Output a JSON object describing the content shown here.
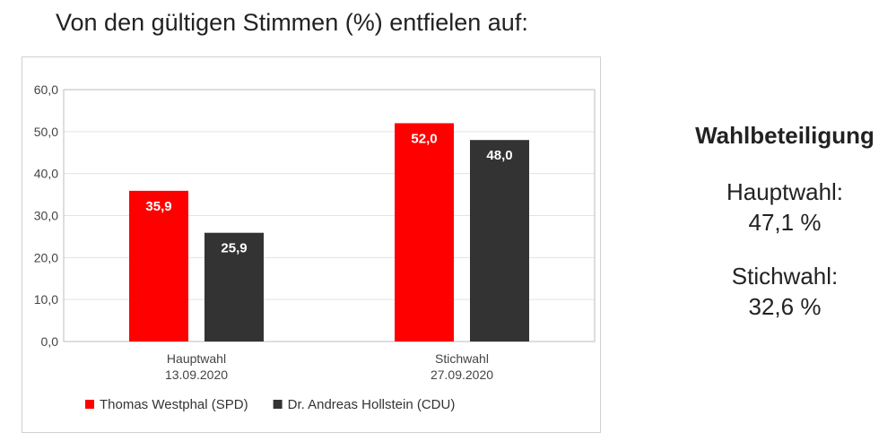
{
  "headline": "Von den gültigen Stimmen (%) entfielen auf:",
  "chart_data": {
    "type": "bar",
    "title": "",
    "xlabel": "",
    "ylabel": "",
    "categories": [
      {
        "line1": "Hauptwahl",
        "line2": "13.09.2020"
      },
      {
        "line1": "Stichwahl",
        "line2": "27.09.2020"
      }
    ],
    "series": [
      {
        "name": "Thomas Westphal (SPD)",
        "color": "#ff0000",
        "values": [
          35.9,
          52.0
        ],
        "labels": [
          "35,9",
          "52,0"
        ]
      },
      {
        "name": "Dr. Andreas Hollstein (CDU)",
        "color": "#333333",
        "values": [
          25.9,
          48.0
        ],
        "labels": [
          "25,9",
          "48,0"
        ]
      }
    ],
    "ylim": [
      0,
      60
    ],
    "yticks": [
      0,
      10,
      20,
      30,
      40,
      50,
      60
    ],
    "ytick_labels": [
      "0,0",
      "10,0",
      "20,0",
      "30,0",
      "40,0",
      "50,0",
      "60,0"
    ],
    "grid": true,
    "legend": "bottom"
  },
  "turnout": {
    "title": "Wahlbeteiligung",
    "items": [
      {
        "label": "Hauptwahl:",
        "value": "47,1 %"
      },
      {
        "label": "Stichwahl:",
        "value": "32,6 %"
      }
    ]
  }
}
